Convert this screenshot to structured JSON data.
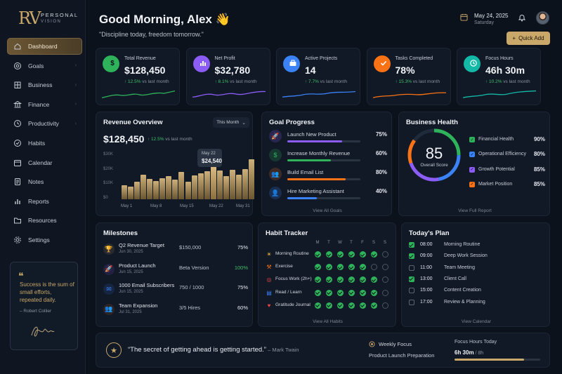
{
  "brand": {
    "mark": "RV",
    "line1": "PERSONAL",
    "line2": "VISION"
  },
  "sidebar": {
    "items": [
      {
        "label": "Dashboard",
        "icon": "home-icon",
        "active": true
      },
      {
        "label": "Goals",
        "icon": "target-icon"
      },
      {
        "label": "Business",
        "icon": "building-icon"
      },
      {
        "label": "Finance",
        "icon": "bank-icon"
      },
      {
        "label": "Productivity",
        "icon": "clock-icon"
      },
      {
        "label": "Habits",
        "icon": "check-circle-icon"
      },
      {
        "label": "Calendar",
        "icon": "calendar-icon"
      },
      {
        "label": "Notes",
        "icon": "notes-icon"
      },
      {
        "label": "Reports",
        "icon": "bar-chart-icon"
      },
      {
        "label": "Resources",
        "icon": "folder-icon"
      },
      {
        "label": "Settings",
        "icon": "gear-icon"
      }
    ],
    "quote": {
      "text": "Success is the sum of small efforts, repeated daily.",
      "author": "– Robert Collier"
    }
  },
  "header": {
    "greeting": "Good Morning, Alex 👋",
    "subtitle": "\"Discipline today, freedom tomorrow.\"",
    "date": "May 24, 2025",
    "day": "Saturday",
    "quick_add": "Quick Add"
  },
  "kpis": [
    {
      "title": "Total Revenue",
      "value": "$128,450",
      "change": "↑ 12.5%",
      "suffix": " vs last month",
      "color": "#2fb35a",
      "icon": "dollar-icon"
    },
    {
      "title": "Net Profit",
      "value": "$32,780",
      "change": "↑ 8.1%",
      "suffix": " vs last month",
      "color": "#8b5cf6",
      "icon": "bar-chart-icon"
    },
    {
      "title": "Active Projects",
      "value": "14",
      "change": "↑ 7.7%",
      "suffix": " vs last month",
      "color": "#3b82f6",
      "icon": "briefcase-icon"
    },
    {
      "title": "Tasks Completed",
      "value": "78%",
      "change": "↑ 15.3%",
      "suffix": " vs last month",
      "color": "#f97316",
      "icon": "check-icon"
    },
    {
      "title": "Focus Hours",
      "value": "46h 30m",
      "change": "↑ 10.2%",
      "suffix": " vs last month",
      "color": "#14b8a6",
      "icon": "clock-icon"
    }
  ],
  "revenue": {
    "title": "Revenue Overview",
    "range": "This Month",
    "value": "$128,450",
    "change": "↑ 12.5%",
    "suffix": " vs last month",
    "tooltip": {
      "date": "May 22",
      "value": "$24,540"
    }
  },
  "chart_data": {
    "type": "bar",
    "title": "Revenue Overview",
    "x_ticks": [
      "May 1",
      "May 8",
      "May 15",
      "May 22",
      "May 31"
    ],
    "y_ticks": [
      "$30K",
      "$20K",
      "$10K",
      "$0"
    ],
    "ylim": [
      0,
      30000
    ],
    "values": [
      9500,
      8500,
      12000,
      16500,
      14000,
      12500,
      14500,
      15500,
      13500,
      18500,
      12000,
      16000,
      17500,
      19000,
      24540,
      19500,
      15500,
      20000,
      16500,
      20500,
      27000
    ],
    "highlight_index": 14,
    "grid": false
  },
  "goals": {
    "title": "Goal Progress",
    "items": [
      {
        "label": "Launch New Product",
        "pct": "75%",
        "value": 75,
        "color": "#8b5cf6",
        "icon": "rocket-icon"
      },
      {
        "label": "Increase Monthly Revenue",
        "pct": "60%",
        "value": 60,
        "color": "#2fb35a",
        "icon": "dollar-icon"
      },
      {
        "label": "Build Email List",
        "pct": "80%",
        "value": 80,
        "color": "#f97316",
        "icon": "users-icon"
      },
      {
        "label": "Hire Marketing Assistant",
        "pct": "40%",
        "value": 40,
        "color": "#3b82f6",
        "icon": "user-icon"
      }
    ],
    "link": "View All Goals"
  },
  "health": {
    "title": "Business Health",
    "score": "85",
    "score_label": "Overall Score",
    "items": [
      {
        "label": "Financial Health",
        "pct": "90%",
        "color": "#2fb35a"
      },
      {
        "label": "Operational Efficiency",
        "pct": "80%",
        "color": "#3b82f6"
      },
      {
        "label": "Growth Potential",
        "pct": "85%",
        "color": "#8b5cf6"
      },
      {
        "label": "Market Position",
        "pct": "85%",
        "color": "#f97316"
      }
    ],
    "link": "View Full Report"
  },
  "milestones": {
    "title": "Milestones",
    "items": [
      {
        "title": "Q2 Revenue Target",
        "date": "Jun 30, 2025",
        "metric": "$150,000",
        "pct": "75%",
        "icon": "trophy-icon",
        "color": "#c9a86a"
      },
      {
        "title": "Product Launch",
        "date": "Jun 15, 2025",
        "metric": "Beta Version",
        "pct": "100%",
        "icon": "rocket-icon",
        "color": "#8b5cf6"
      },
      {
        "title": "1000 Email Subscribers",
        "date": "Jun 15, 2025",
        "metric": "750 / 1000",
        "pct": "75%",
        "icon": "mail-icon",
        "color": "#3b82f6"
      },
      {
        "title": "Team Expansion",
        "date": "Jul 31, 2025",
        "metric": "3/5 Hires",
        "pct": "60%",
        "icon": "users-icon",
        "color": "#f97316"
      }
    ]
  },
  "habits": {
    "title": "Habit Tracker",
    "days": [
      "M",
      "T",
      "W",
      "T",
      "F",
      "S",
      "S"
    ],
    "items": [
      {
        "label": "Morning Routine",
        "icon": "sun-icon",
        "glyph": "☀",
        "color": "#f5b642",
        "done": [
          1,
          1,
          1,
          1,
          1,
          1,
          0
        ]
      },
      {
        "label": "Exercise",
        "icon": "dumbbell-icon",
        "glyph": "⚒",
        "color": "#f97316",
        "done": [
          1,
          1,
          1,
          1,
          1,
          0,
          0
        ]
      },
      {
        "label": "Focus Work (2h+)",
        "icon": "target-icon",
        "glyph": "◎",
        "color": "#ef4444",
        "done": [
          1,
          1,
          1,
          1,
          1,
          1,
          0
        ]
      },
      {
        "label": "Read / Learn",
        "icon": "book-icon",
        "glyph": "▤",
        "color": "#3b82f6",
        "done": [
          1,
          1,
          1,
          1,
          1,
          1,
          0
        ]
      },
      {
        "label": "Gratitude Journal",
        "icon": "heart-icon",
        "glyph": "♥",
        "color": "#ef4444",
        "done": [
          1,
          1,
          1,
          1,
          1,
          1,
          0
        ]
      }
    ],
    "link": "View All Habits"
  },
  "plan": {
    "title": "Today's Plan",
    "items": [
      {
        "time": "08:00",
        "task": "Morning Routine",
        "done": true
      },
      {
        "time": "09:00",
        "task": "Deep Work Session",
        "done": true
      },
      {
        "time": "11:00",
        "task": "Team Meeting",
        "done": false
      },
      {
        "time": "13:00",
        "task": "Client Call",
        "done": true
      },
      {
        "time": "15:00",
        "task": "Content Creation",
        "done": false
      },
      {
        "time": "17:00",
        "task": "Review & Planning",
        "done": false
      }
    ],
    "link": "View Calendar"
  },
  "footer": {
    "quote": "“The secret of getting ahead is getting started.”",
    "author": " – Mark Twain",
    "weekly_label": "Weekly Focus",
    "weekly_value": "Product Launch Preparation",
    "focus_label": "Focus Hours Today",
    "focus_value": "6h 30m",
    "focus_target": " / 8h",
    "focus_progress": 0.81
  }
}
